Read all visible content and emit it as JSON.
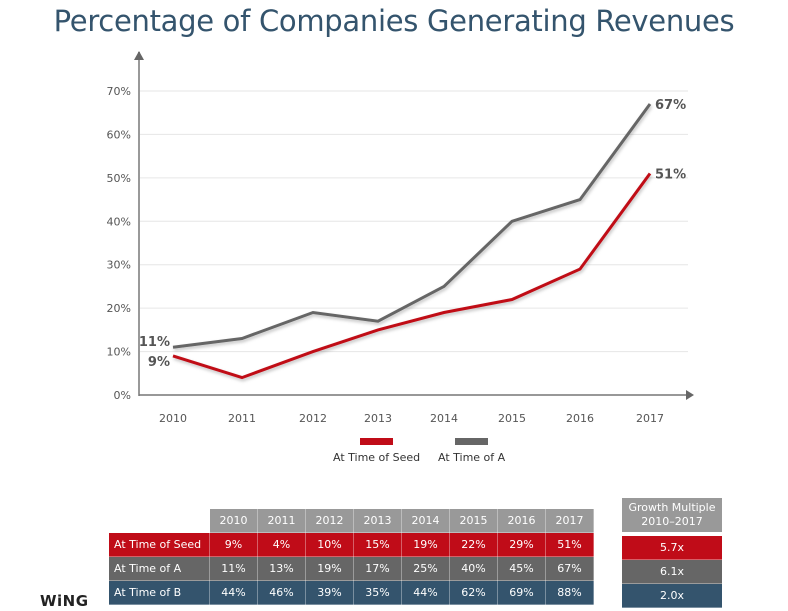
{
  "title": "Percentage of Companies Generating Revenues",
  "colors": {
    "seed": "#c00c18",
    "a": "#666666",
    "b": "#34546d",
    "header": "#999999",
    "title": "#34546d",
    "grid": "#e6e6e6",
    "axis": "#777777"
  },
  "chart_data": {
    "type": "line",
    "title": "Percentage of Companies Generating Revenues",
    "xlabel": "",
    "ylabel": "",
    "x": [
      "2010",
      "2011",
      "2012",
      "2013",
      "2014",
      "2015",
      "2016",
      "2017"
    ],
    "ylim": [
      0,
      70
    ],
    "yticks": [
      "0%",
      "10%",
      "20%",
      "30%",
      "40%",
      "50%",
      "60%",
      "70%"
    ],
    "ytick_values": [
      0,
      10,
      20,
      30,
      40,
      50,
      60,
      70
    ],
    "grid": true,
    "legend_position": "bottom-center",
    "series": [
      {
        "name": "At Time of Seed",
        "color": "#c00c18",
        "values": [
          9,
          4,
          10,
          15,
          19,
          22,
          29,
          51
        ],
        "start_label": "9%",
        "end_label": "51%"
      },
      {
        "name": "At Time of A",
        "color": "#666666",
        "values": [
          11,
          13,
          19,
          17,
          25,
          40,
          45,
          67
        ],
        "start_label": "11%",
        "end_label": "67%"
      }
    ]
  },
  "legend": [
    {
      "label": "At Time of Seed",
      "color": "#c00c18"
    },
    {
      "label": "At Time of A",
      "color": "#666666"
    }
  ],
  "table": {
    "headers": [
      "2010",
      "2011",
      "2012",
      "2013",
      "2014",
      "2015",
      "2016",
      "2017"
    ],
    "rows": [
      {
        "label": "At Time of Seed",
        "color": "#c00c18",
        "values": [
          "9%",
          "4%",
          "10%",
          "15%",
          "19%",
          "22%",
          "29%",
          "51%"
        ]
      },
      {
        "label": "At Time of A",
        "color": "#666666",
        "values": [
          "11%",
          "13%",
          "19%",
          "17%",
          "25%",
          "40%",
          "45%",
          "67%"
        ]
      },
      {
        "label": "At Time of B",
        "color": "#34546d",
        "values": [
          "44%",
          "46%",
          "39%",
          "35%",
          "44%",
          "62%",
          "69%",
          "88%"
        ]
      }
    ]
  },
  "growth": {
    "header_line1": "Growth Multiple",
    "header_line2": "2010–2017",
    "values": [
      "5.7x",
      "6.1x",
      "2.0x"
    ]
  },
  "logo": "WiNG"
}
